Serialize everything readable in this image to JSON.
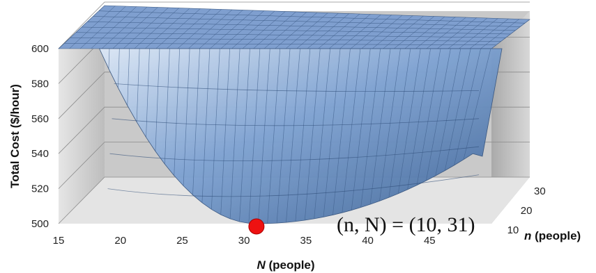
{
  "chart_data": {
    "type": "surface-3d",
    "title": "",
    "zlabel": "Total Cost ($/hour)",
    "xlabel_var": "N",
    "xlabel_unit": " (people)",
    "ylabel_var": "n",
    "ylabel_unit": " (people)",
    "z_ticks": [
      "500",
      "520",
      "540",
      "560",
      "580",
      "600"
    ],
    "x_ticks": [
      "15",
      "20",
      "25",
      "30",
      "35",
      "40",
      "45"
    ],
    "y_ticks": [
      "10",
      "20",
      "30"
    ],
    "zlim": [
      500,
      600
    ],
    "xlim": [
      15,
      50
    ],
    "ylim": [
      5,
      30
    ],
    "minimum": {
      "n": 10,
      "N": 31,
      "cost": 500,
      "label": "(n, N) = (10, 31)"
    },
    "grid": true,
    "colors": {
      "surface": "#6f95c9",
      "marker": "#ee1111",
      "wall_left": "#cfcfcf",
      "wall_back": "#c4c4c4",
      "floor": "#e6e6e6"
    }
  }
}
